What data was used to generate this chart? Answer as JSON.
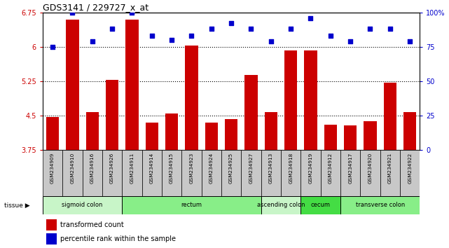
{
  "title": "GDS3141 / 229727_x_at",
  "samples": [
    "GSM234909",
    "GSM234910",
    "GSM234916",
    "GSM234926",
    "GSM234911",
    "GSM234914",
    "GSM234915",
    "GSM234923",
    "GSM234924",
    "GSM234925",
    "GSM234927",
    "GSM234913",
    "GSM234918",
    "GSM234919",
    "GSM234912",
    "GSM234917",
    "GSM234920",
    "GSM234921",
    "GSM234922"
  ],
  "bar_values": [
    4.47,
    6.6,
    4.57,
    5.28,
    6.6,
    4.35,
    4.55,
    6.03,
    4.35,
    4.42,
    5.38,
    4.57,
    5.92,
    5.92,
    4.3,
    4.28,
    4.38,
    5.22,
    4.57
  ],
  "dot_values": [
    75,
    100,
    79,
    88,
    100,
    83,
    80,
    83,
    88,
    92,
    88,
    79,
    88,
    96,
    83,
    79,
    88,
    88,
    79
  ],
  "ylim_left": [
    3.75,
    6.75
  ],
  "ylim_right": [
    0,
    100
  ],
  "yticks_left": [
    3.75,
    4.5,
    5.25,
    6.0,
    6.75
  ],
  "ytick_labels_left": [
    "3.75",
    "4.5",
    "5.25",
    "6",
    "6.75"
  ],
  "yticks_right": [
    0,
    25,
    50,
    75,
    100
  ],
  "ytick_labels_right": [
    "0",
    "25",
    "50",
    "75",
    "100%"
  ],
  "hlines": [
    4.5,
    5.25,
    6.0
  ],
  "bar_color": "#cc0000",
  "dot_color": "#0000cc",
  "tissue_groups": [
    {
      "label": "sigmoid colon",
      "start": 0,
      "end": 4,
      "color": "#c8f5c8"
    },
    {
      "label": "rectum",
      "start": 4,
      "end": 11,
      "color": "#88ee88"
    },
    {
      "label": "ascending colon",
      "start": 11,
      "end": 13,
      "color": "#c8f5c8"
    },
    {
      "label": "cecum",
      "start": 13,
      "end": 15,
      "color": "#44dd44"
    },
    {
      "label": "transverse colon",
      "start": 15,
      "end": 19,
      "color": "#88ee88"
    }
  ],
  "tissue_label": "tissue ▶",
  "legend_bar_label": "transformed count",
  "legend_dot_label": "percentile rank within the sample",
  "cell_color": "#c8c8c8",
  "plot_bg_color": "#ffffff"
}
